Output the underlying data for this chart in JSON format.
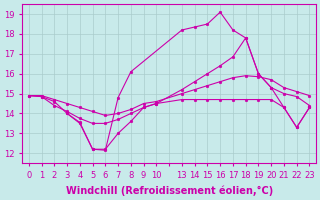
{
  "background_color": "#c8eaea",
  "grid_color": "#aacccc",
  "line_color": "#cc00aa",
  "xlabel": "Windchill (Refroidissement éolien,°C)",
  "ylim": [
    11.5,
    19.5
  ],
  "yticks": [
    12,
    13,
    14,
    15,
    16,
    17,
    18,
    19
  ],
  "xtick_labels": [
    "0",
    "1",
    "2",
    "3",
    "4",
    "5",
    "6",
    "7",
    "8",
    "9",
    "10",
    "",
    "13",
    "14",
    "15",
    "16",
    "17",
    "18",
    "19",
    "20",
    "21",
    "22",
    "23"
  ],
  "line_A_x": [
    0,
    1,
    2,
    3,
    4,
    5,
    6,
    7,
    8,
    9,
    10,
    13,
    14,
    15,
    16,
    17,
    18,
    19,
    20,
    21,
    22,
    23
  ],
  "line_A_y": [
    14.9,
    14.85,
    14.4,
    14.1,
    13.75,
    13.5,
    13.5,
    13.7,
    14.0,
    14.3,
    14.5,
    15.2,
    15.6,
    16.0,
    16.4,
    16.85,
    17.8,
    16.0,
    15.3,
    15.0,
    14.85,
    14.4
  ],
  "line_B_x": [
    0,
    1,
    2,
    3,
    4,
    5,
    6,
    7,
    8,
    9,
    10,
    13,
    14,
    15,
    16,
    17,
    18,
    19,
    20,
    21,
    22,
    23
  ],
  "line_B_y": [
    14.9,
    14.9,
    14.7,
    14.5,
    14.3,
    14.1,
    13.9,
    14.0,
    14.2,
    14.5,
    14.6,
    15.0,
    15.2,
    15.4,
    15.6,
    15.8,
    15.9,
    15.85,
    15.7,
    15.3,
    15.1,
    14.9
  ],
  "line_C_x": [
    3,
    4,
    5,
    6,
    7,
    8,
    13,
    14,
    15,
    16,
    17,
    18,
    19,
    20,
    21,
    22,
    23
  ],
  "line_C_y": [
    14.0,
    13.5,
    12.2,
    12.15,
    14.8,
    16.1,
    18.2,
    18.35,
    18.5,
    19.1,
    18.2,
    17.8,
    16.0,
    15.3,
    14.3,
    13.3,
    14.3
  ],
  "line_D_x": [
    0,
    1,
    2,
    3,
    4,
    5,
    6,
    7,
    8,
    9,
    10,
    13,
    14,
    15,
    16,
    17,
    18,
    19,
    20,
    21,
    22,
    23
  ],
  "line_D_y": [
    14.9,
    14.85,
    14.6,
    14.0,
    13.55,
    12.2,
    12.2,
    13.0,
    13.6,
    14.3,
    14.5,
    14.7,
    14.7,
    14.7,
    14.7,
    14.7,
    14.7,
    14.7,
    14.7,
    14.3,
    13.3,
    14.3
  ],
  "marker_size": 2.0,
  "linewidth": 0.8,
  "font_size": 7,
  "tick_font_size": 6
}
